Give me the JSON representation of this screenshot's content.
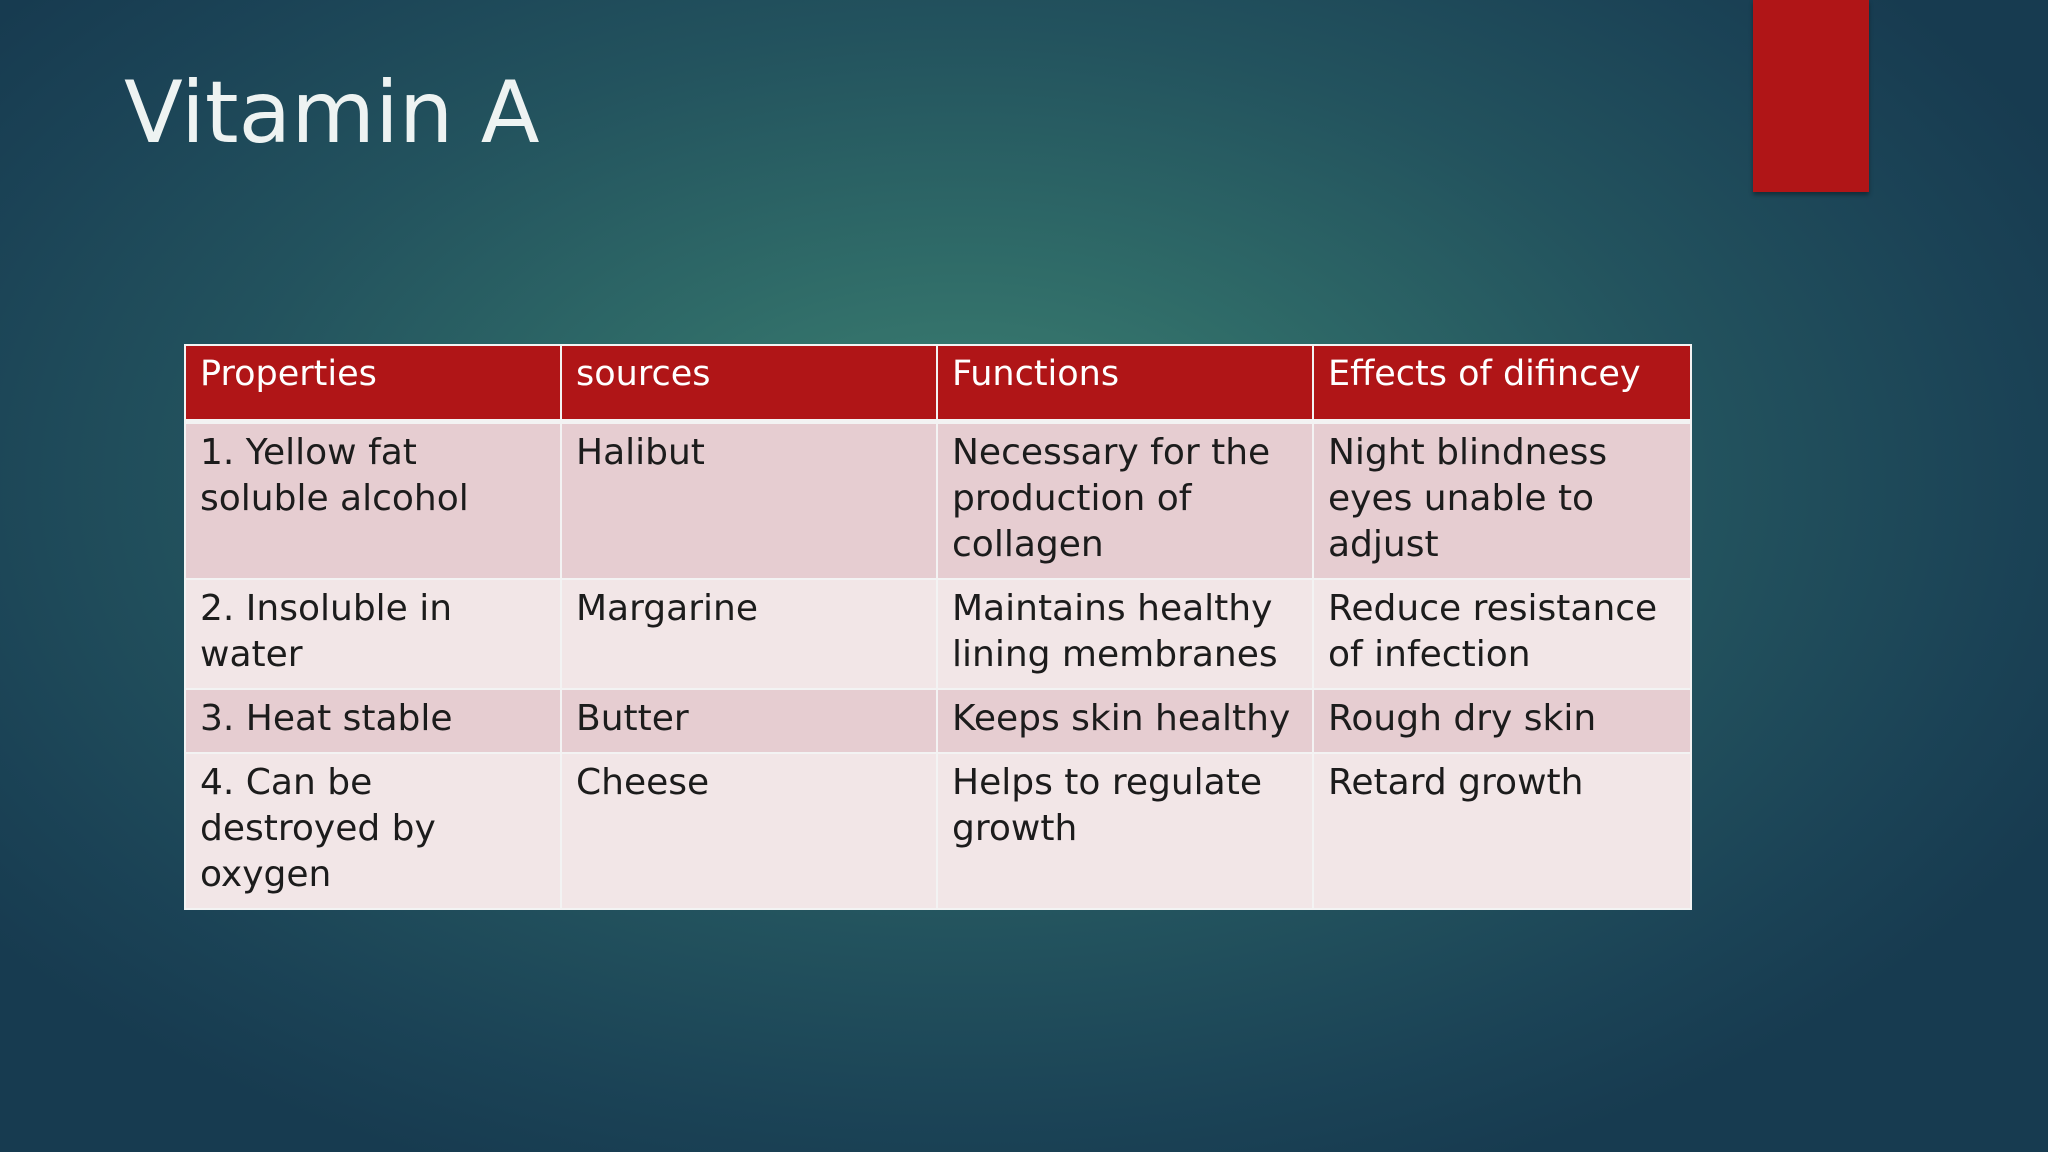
{
  "slide": {
    "title": "Vitamin A",
    "colors": {
      "accent": "#b01517",
      "background": "#2f6b68",
      "row_dark": "#e6cdd1",
      "row_light": "#f2e6e7"
    }
  },
  "table": {
    "headers": [
      "Properties",
      "sources",
      "Functions",
      "Effects of difincey"
    ],
    "rows": [
      [
        "1. Yellow fat soluble alcohol",
        "Halibut",
        "Necessary for the production of collagen",
        "Night blindness eyes unable to adjust"
      ],
      [
        "2. Insoluble in water",
        "Margarine",
        "Maintains healthy lining membranes",
        "Reduce resistance of infection"
      ],
      [
        "3. Heat stable",
        "Butter",
        "Keeps skin healthy",
        "Rough dry skin"
      ],
      [
        "4. Can be destroyed by oxygen",
        "Cheese",
        "Helps to regulate growth",
        "Retard growth"
      ]
    ]
  }
}
